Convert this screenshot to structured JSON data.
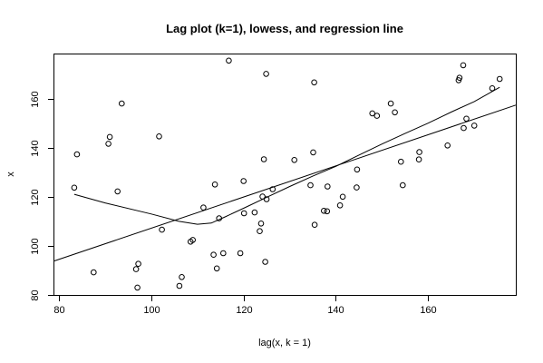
{
  "chart_data": {
    "type": "scatter",
    "title": "Lag plot (k=1), lowess, and regression line",
    "xlabel": "lag(x, k = 1)",
    "ylabel": "x",
    "xlim": [
      79,
      179
    ],
    "ylim": [
      80,
      178
    ],
    "xticks": [
      80,
      100,
      120,
      140,
      160
    ],
    "yticks": [
      80,
      100,
      120,
      140,
      160
    ],
    "grid": false,
    "points": [
      [
        83.3,
        123.7
      ],
      [
        83.9,
        137.3
      ],
      [
        87.5,
        89.2
      ],
      [
        90.7,
        141.6
      ],
      [
        91.0,
        144.4
      ],
      [
        92.7,
        122.2
      ],
      [
        93.6,
        158.0
      ],
      [
        96.7,
        90.5
      ],
      [
        97.0,
        83.0
      ],
      [
        97.2,
        92.7
      ],
      [
        101.7,
        144.6
      ],
      [
        102.3,
        106.6
      ],
      [
        106.1,
        83.7
      ],
      [
        106.6,
        87.3
      ],
      [
        108.5,
        101.7
      ],
      [
        109.0,
        102.4
      ],
      [
        111.3,
        115.6
      ],
      [
        113.5,
        96.4
      ],
      [
        113.8,
        125.0
      ],
      [
        114.2,
        90.8
      ],
      [
        114.7,
        111.2
      ],
      [
        115.6,
        97.0
      ],
      [
        116.8,
        175.5
      ],
      [
        119.3,
        97.0
      ],
      [
        120.0,
        126.4
      ],
      [
        120.1,
        113.3
      ],
      [
        122.4,
        113.6
      ],
      [
        123.5,
        106.0
      ],
      [
        123.8,
        109.1
      ],
      [
        124.1,
        120.1
      ],
      [
        124.4,
        135.3
      ],
      [
        124.7,
        93.5
      ],
      [
        125.0,
        119.0
      ],
      [
        124.9,
        170.1
      ],
      [
        126.3,
        123.1
      ],
      [
        131.0,
        135.0
      ],
      [
        134.5,
        124.7
      ],
      [
        135.1,
        138.1
      ],
      [
        135.3,
        166.6
      ],
      [
        135.4,
        108.6
      ],
      [
        137.4,
        114.3
      ],
      [
        138.1,
        114.1
      ],
      [
        138.2,
        124.2
      ],
      [
        140.9,
        116.5
      ],
      [
        141.5,
        120.0
      ],
      [
        144.5,
        123.8
      ],
      [
        144.6,
        131.1
      ],
      [
        147.9,
        154.0
      ],
      [
        148.9,
        153.0
      ],
      [
        151.9,
        158.0
      ],
      [
        152.8,
        154.4
      ],
      [
        154.1,
        134.3
      ],
      [
        154.5,
        124.7
      ],
      [
        158.0,
        135.2
      ],
      [
        158.1,
        138.2
      ],
      [
        164.2,
        140.9
      ],
      [
        166.6,
        167.5
      ],
      [
        166.8,
        168.5
      ],
      [
        167.6,
        173.6
      ],
      [
        167.7,
        148.0
      ],
      [
        168.3,
        151.8
      ],
      [
        170.0,
        149.0
      ],
      [
        173.9,
        164.2
      ],
      [
        175.5,
        168.0
      ]
    ],
    "regression": {
      "intercept": 43.7,
      "slope": 0.635
    },
    "lowess": [
      [
        83.3,
        121.0
      ],
      [
        90.0,
        117.5
      ],
      [
        100.0,
        113.0
      ],
      [
        106.0,
        110.0
      ],
      [
        110.0,
        108.8
      ],
      [
        113.0,
        109.3
      ],
      [
        116.0,
        111.8
      ],
      [
        120.0,
        115.3
      ],
      [
        125.0,
        119.8
      ],
      [
        130.0,
        124.2
      ],
      [
        135.0,
        128.4
      ],
      [
        140.0,
        132.4
      ],
      [
        145.0,
        137.0
      ],
      [
        150.0,
        141.5
      ],
      [
        155.0,
        145.8
      ],
      [
        160.0,
        150.0
      ],
      [
        165.0,
        154.5
      ],
      [
        170.0,
        158.8
      ],
      [
        175.5,
        164.6
      ]
    ]
  }
}
